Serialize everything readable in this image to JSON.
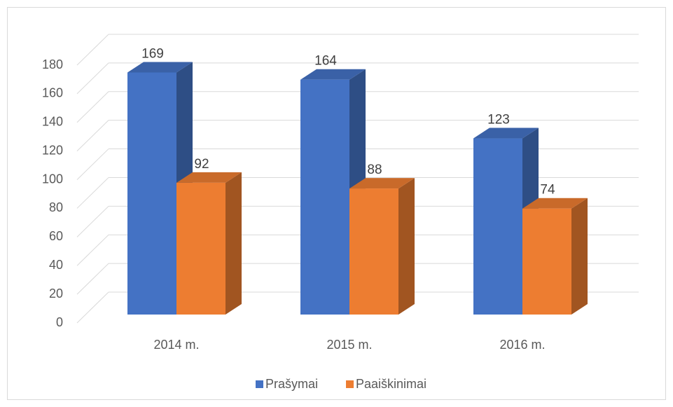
{
  "chart_data": {
    "type": "bar3d",
    "categories": [
      "2014 m.",
      "2015 m.",
      "2016 m."
    ],
    "series": [
      {
        "name": "Prašymai",
        "color": "#4472c4",
        "values": [
          169,
          164,
          123
        ]
      },
      {
        "name": "Paaiškinimai",
        "color": "#ed7d31",
        "values": [
          92,
          88,
          74
        ]
      }
    ],
    "ylim": [
      0,
      180
    ],
    "yticks": [
      0,
      20,
      40,
      60,
      80,
      100,
      120,
      140,
      160,
      180
    ],
    "grid": true,
    "legend": "bottom"
  }
}
